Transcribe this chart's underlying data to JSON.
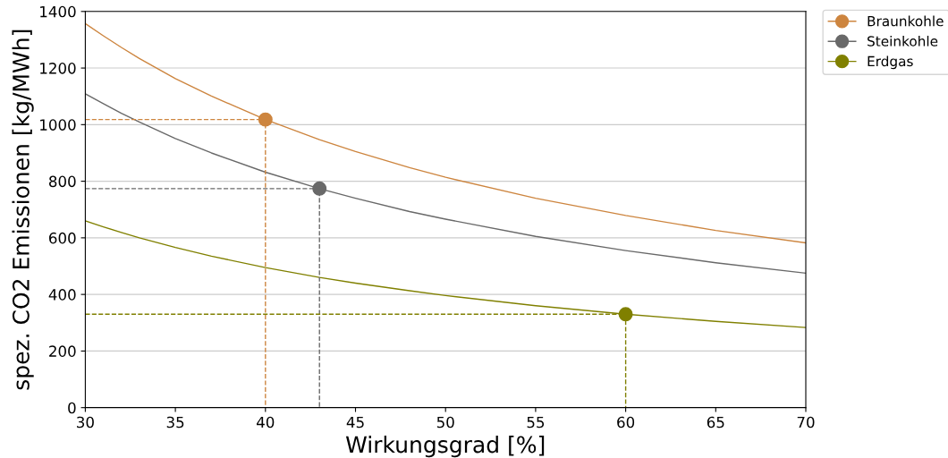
{
  "chart_data": {
    "type": "line",
    "xlabel": "Wirkungsgrad [%]",
    "ylabel": "spez. CO2 Emissionen [kg/MWh]",
    "x": [
      30,
      31,
      32,
      33,
      35,
      37,
      40,
      43,
      45,
      48,
      50,
      55,
      60,
      65,
      70
    ],
    "series": [
      {
        "name": "Braunkohle",
        "color": "#cd853f",
        "values": [
          1357,
          1314,
          1273,
          1234,
          1163,
          1101,
          1018,
          947,
          905,
          848,
          814,
          740,
          679,
          626,
          582
        ]
      },
      {
        "name": "Steinkohle",
        "color": "#696969",
        "values": [
          1109,
          1074,
          1040,
          1009,
          951,
          900,
          832,
          774,
          740,
          693,
          666,
          605,
          555,
          512,
          475
        ]
      },
      {
        "name": "Erdgas",
        "color": "#808000",
        "values": [
          660,
          639,
          619,
          600,
          566,
          535,
          495,
          460,
          440,
          413,
          396,
          360,
          330,
          305,
          283
        ]
      },
      {
        "type": "line",
        "line_style": "dashed",
        "color": "#cd853f",
        "x": [
          30,
          40,
          40
        ],
        "values": [
          1018,
          1018,
          0
        ]
      },
      {
        "type": "line",
        "line_style": "dashed",
        "color": "#696969",
        "x": [
          30,
          43,
          43
        ],
        "values": [
          774,
          774,
          0
        ]
      },
      {
        "type": "line",
        "line_style": "dashed",
        "color": "#808000",
        "x": [
          30,
          60,
          60
        ],
        "values": [
          330,
          330,
          0
        ]
      },
      {
        "type": "scatter",
        "marker": "circle",
        "color": "#cd853f",
        "x": [
          40
        ],
        "values": [
          1018
        ]
      },
      {
        "type": "scatter",
        "marker": "circle",
        "color": "#696969",
        "x": [
          43
        ],
        "values": [
          774
        ]
      },
      {
        "type": "scatter",
        "marker": "circle",
        "color": "#808000",
        "x": [
          60
        ],
        "values": [
          330
        ]
      }
    ],
    "xlim": [
      30,
      70
    ],
    "xticks": [
      30,
      35,
      40,
      45,
      50,
      55,
      60,
      65,
      70
    ],
    "ylim": [
      0,
      1400
    ],
    "yticks": [
      0,
      200,
      400,
      600,
      800,
      1000,
      1200,
      1400
    ],
    "grid": "y",
    "legend": "top right"
  }
}
